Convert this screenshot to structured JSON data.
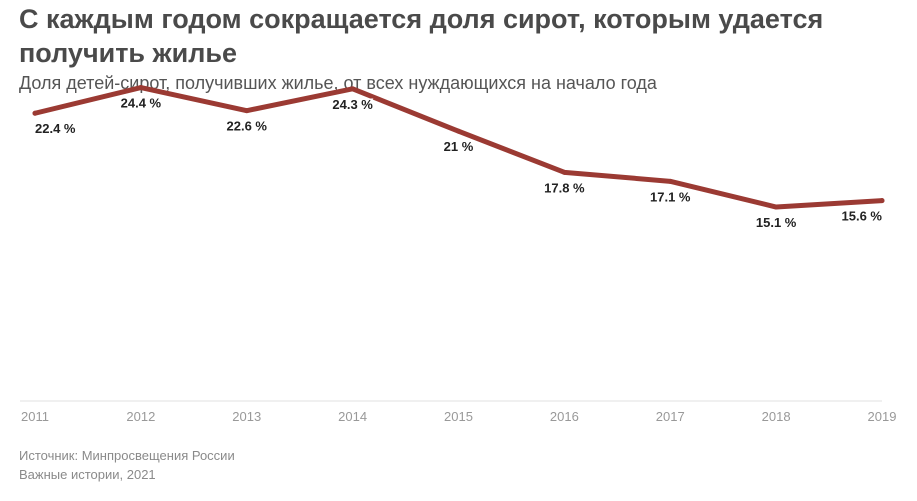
{
  "title": "С каждым годом сокращается доля сирот, которым удается получить жилье",
  "subtitle": "Доля детей-сирот, получивших жилье, от всех нуждающихся на начало года",
  "footer": {
    "source": "Источник: Минпросвещения России",
    "credit": "Важные истории, 2021"
  },
  "colors": {
    "line": "#9b3a33",
    "axis": "#e0e0e0",
    "tick_text": "#999999",
    "label_text": "#222222"
  },
  "chart_data": {
    "type": "line",
    "title": "С каждым годом сокращается доля сирот, которым удается получить жилье",
    "subtitle": "Доля детей-сирот, получивших жилье, от всех нуждающихся на начало года",
    "x": [
      2011,
      2012,
      2013,
      2014,
      2015,
      2016,
      2017,
      2018,
      2019
    ],
    "series": [
      {
        "values": [
          22.4,
          24.4,
          22.6,
          24.3,
          21,
          17.8,
          17.1,
          15.1,
          15.6
        ],
        "labels": [
          "22.4 %",
          "24.4 %",
          "22.6 %",
          "24.3 %",
          "21 %",
          "17.8 %",
          "17.1 %",
          "15.1 %",
          "15.6 %"
        ]
      }
    ],
    "x_tick_labels": [
      "2011",
      "2012",
      "2013",
      "2014",
      "2015",
      "2016",
      "2017",
      "2018",
      "2019"
    ],
    "ylim": [
      0,
      26
    ],
    "grid": false,
    "y_axis_visible": false
  }
}
